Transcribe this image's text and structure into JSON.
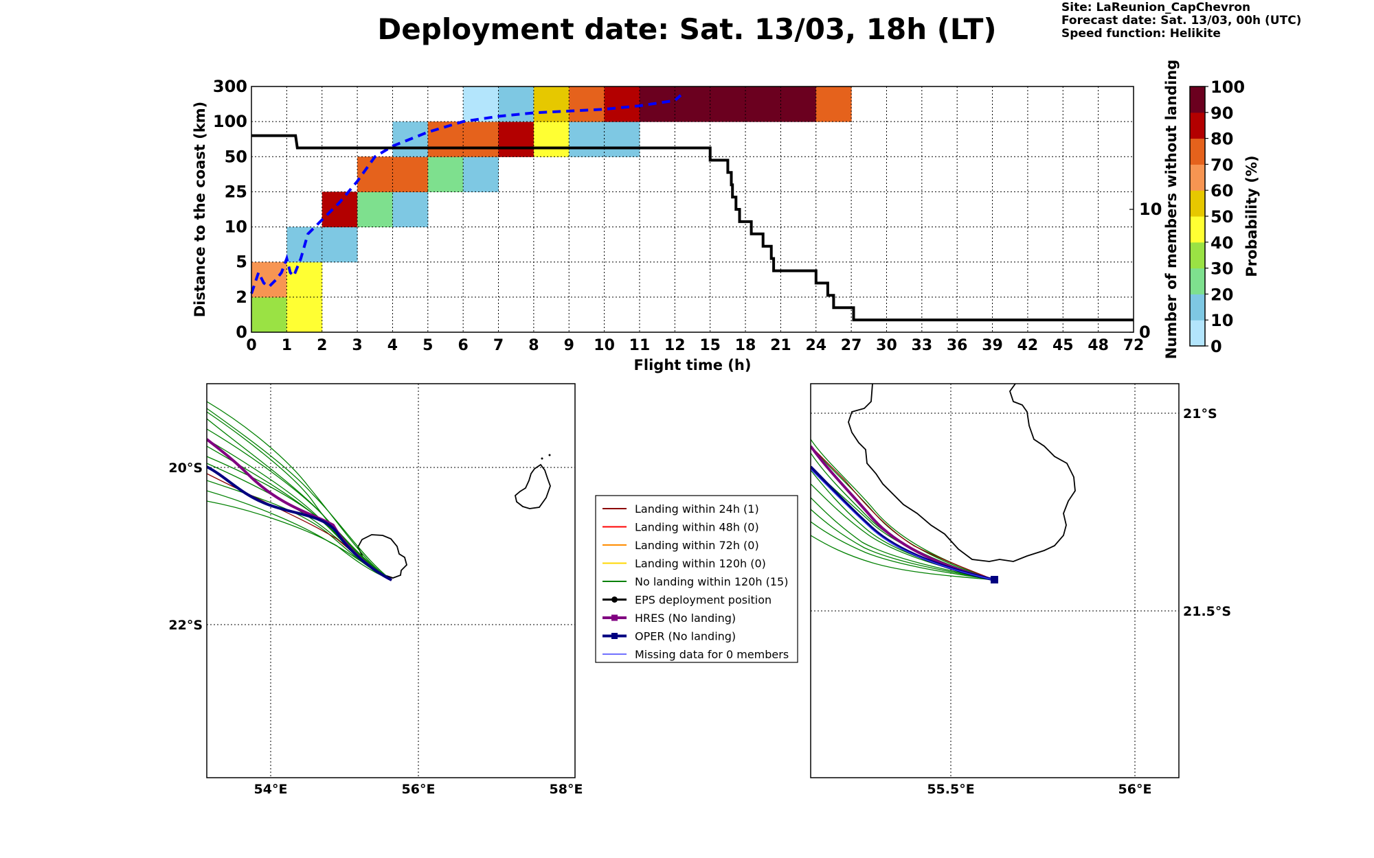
{
  "title": "Deployment date: Sat. 13/03, 18h (LT)",
  "info": {
    "site": "Site: LaReunion_CapChevron",
    "forecast": "Forecast date: Sat. 13/03, 00h (UTC)",
    "speed": "Speed function: Helikite"
  },
  "chart_data": [
    {
      "type": "heatmap",
      "title": "",
      "xlabel": "Flight time (h)",
      "ylabel": "Distance to the coast (km)",
      "y2label": "Number of members without landing",
      "colorbar_label": "Probability (%)",
      "x_ticks": [
        "0",
        "1",
        "2",
        "3",
        "4",
        "5",
        "6",
        "7",
        "8",
        "9",
        "10",
        "11",
        "12",
        "15",
        "18",
        "21",
        "24",
        "27",
        "30",
        "33",
        "36",
        "39",
        "42",
        "45",
        "48",
        "72"
      ],
      "y_ticks": [
        "0",
        "2",
        "5",
        "10",
        "25",
        "50",
        "100",
        "300"
      ],
      "y2_ticks": [
        "0",
        "10"
      ],
      "colorbar_ticks": [
        "0",
        "10",
        "20",
        "30",
        "40",
        "50",
        "60",
        "70",
        "80",
        "90",
        "100"
      ],
      "colorbar_colors": [
        "#b3e5fc",
        "#7ec8e3",
        "#7ee08e",
        "#9ae244",
        "#ffff33",
        "#e6c800",
        "#f79552",
        "#e5621c",
        "#b30000",
        "#6b001f"
      ],
      "cells": [
        {
          "x": 0,
          "y": 0,
          "p": 30
        },
        {
          "x": 1,
          "y": 0,
          "p": 40
        },
        {
          "x": 0,
          "y": 1,
          "p": 60
        },
        {
          "x": 1,
          "y": 1,
          "p": 40
        },
        {
          "x": 1,
          "y": 2,
          "p": 10
        },
        {
          "x": 2,
          "y": 2,
          "p": 10
        },
        {
          "x": 2,
          "y": 3,
          "p": 80
        },
        {
          "x": 3,
          "y": 3,
          "p": 20
        },
        {
          "x": 4,
          "y": 3,
          "p": 10
        },
        {
          "x": 3,
          "y": 4,
          "p": 70
        },
        {
          "x": 4,
          "y": 4,
          "p": 70
        },
        {
          "x": 5,
          "y": 4,
          "p": 20
        },
        {
          "x": 6,
          "y": 4,
          "p": 10
        },
        {
          "x": 4,
          "y": 5,
          "p": 10
        },
        {
          "x": 5,
          "y": 5,
          "p": 70
        },
        {
          "x": 6,
          "y": 5,
          "p": 70
        },
        {
          "x": 7,
          "y": 5,
          "p": 80
        },
        {
          "x": 8,
          "y": 5,
          "p": 40
        },
        {
          "x": 9,
          "y": 5,
          "p": 10
        },
        {
          "x": 10,
          "y": 5,
          "p": 10
        },
        {
          "x": 6,
          "y": 6,
          "p": 0
        },
        {
          "x": 7,
          "y": 6,
          "p": 10
        },
        {
          "x": 8,
          "y": 6,
          "p": 50
        },
        {
          "x": 9,
          "y": 6,
          "p": 70
        },
        {
          "x": 10,
          "y": 6,
          "p": 80
        },
        {
          "x": 11,
          "y": 6,
          "p": 90
        },
        {
          "x": 12,
          "y": 6,
          "p": 90
        },
        {
          "x": 13,
          "y": 6,
          "p": 90
        },
        {
          "x": 14,
          "y": 6,
          "p": 90
        },
        {
          "x": 15,
          "y": 6,
          "p": 90
        },
        {
          "x": 16,
          "y": 6,
          "p": 70
        }
      ],
      "members_without_landing": [
        [
          0,
          16
        ],
        [
          1.25,
          16
        ],
        [
          1.3,
          15
        ],
        [
          15,
          15
        ],
        [
          15,
          14
        ],
        [
          16.5,
          14
        ],
        [
          16.5,
          13
        ],
        [
          16.8,
          13
        ],
        [
          16.8,
          12
        ],
        [
          16.9,
          12
        ],
        [
          16.9,
          11
        ],
        [
          17.2,
          11
        ],
        [
          17.2,
          10
        ],
        [
          17.5,
          10
        ],
        [
          17.5,
          9
        ],
        [
          18.5,
          9
        ],
        [
          18.5,
          8
        ],
        [
          19.5,
          8
        ],
        [
          19.5,
          7
        ],
        [
          20.2,
          7
        ],
        [
          20.2,
          6
        ],
        [
          20.4,
          6
        ],
        [
          20.4,
          5
        ],
        [
          24,
          5
        ],
        [
          24,
          4
        ],
        [
          25,
          4
        ],
        [
          25,
          3
        ],
        [
          25.5,
          3
        ],
        [
          25.5,
          2
        ],
        [
          27.2,
          2
        ],
        [
          27.2,
          1
        ],
        [
          72,
          1
        ]
      ],
      "mean_distance_curve": [
        [
          0,
          1.1
        ],
        [
          0.2,
          1.7
        ],
        [
          0.35,
          1.4
        ],
        [
          0.5,
          1.3
        ],
        [
          0.7,
          1.5
        ],
        [
          0.85,
          1.7
        ],
        [
          1.0,
          2.1
        ],
        [
          1.1,
          1.7
        ],
        [
          1.2,
          1.6
        ],
        [
          1.4,
          2.1
        ],
        [
          1.6,
          2.8
        ],
        [
          2.0,
          3.2
        ],
        [
          2.5,
          3.7
        ],
        [
          3.0,
          4.3
        ],
        [
          3.5,
          5.0
        ],
        [
          4.0,
          5.3
        ],
        [
          5.0,
          5.7
        ],
        [
          6.0,
          6.0
        ],
        [
          7.0,
          6.15
        ],
        [
          8.0,
          6.25
        ],
        [
          9.0,
          6.3
        ],
        [
          10.0,
          6.35
        ],
        [
          11.0,
          6.45
        ],
        [
          12.0,
          6.6
        ],
        [
          12.5,
          6.75
        ]
      ]
    },
    {
      "type": "map",
      "lon_ticks": [
        "54°E",
        "56°E",
        "58°E"
      ],
      "lat_ticks": [
        "20°S",
        "22°S"
      ]
    },
    {
      "type": "map",
      "lon_ticks": [
        "55.5°E",
        "56°E"
      ],
      "lat_ticks": [
        "21°S",
        "21.5°S"
      ]
    }
  ],
  "legend": [
    {
      "label": "Landing within 24h (1)",
      "color": "#8b0000",
      "marker": "none",
      "width": 2
    },
    {
      "label": "Landing within 48h (0)",
      "color": "#ff0000",
      "marker": "none",
      "width": 2
    },
    {
      "label": "Landing within 72h (0)",
      "color": "#ff8c00",
      "marker": "none",
      "width": 2
    },
    {
      "label": "Landing within 120h (0)",
      "color": "#ffd700",
      "marker": "none",
      "width": 2
    },
    {
      "label": "No landing within 120h (15)",
      "color": "#008000",
      "marker": "none",
      "width": 2
    },
    {
      "label": "EPS deployment position",
      "color": "#000000",
      "marker": "circle",
      "width": 3
    },
    {
      "label": "HRES (No landing)",
      "color": "#800080",
      "marker": "square",
      "width": 4
    },
    {
      "label": "OPER (No landing)",
      "color": "#000080",
      "marker": "square",
      "width": 4
    },
    {
      "label": "Missing data for 0 members",
      "color": "#4040ff",
      "marker": "none",
      "width": 1.5
    }
  ]
}
